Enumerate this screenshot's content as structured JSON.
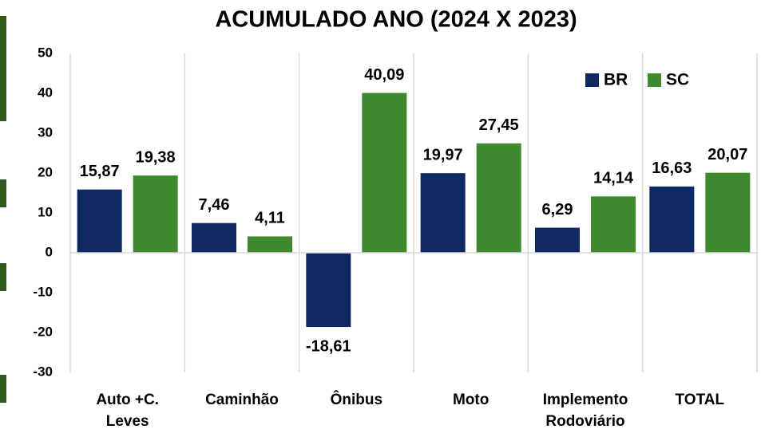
{
  "chart_data": {
    "type": "bar",
    "title": "ACUMULADO ANO (2024 X 2023)",
    "categories": [
      "Auto +C. Leves",
      "Caminhão",
      "Ônibus",
      "Moto",
      "Implemento Rodoviário",
      "TOTAL"
    ],
    "series": [
      {
        "name": "BR",
        "color": "#0f2a63",
        "values": [
          15.87,
          7.46,
          -18.61,
          19.97,
          6.29,
          16.63
        ],
        "value_labels": [
          "15,87",
          "7,46",
          "-18,61",
          "19,97",
          "6,29",
          "16,63"
        ]
      },
      {
        "name": "SC",
        "color": "#3f8a2f",
        "values": [
          19.38,
          4.11,
          40.09,
          27.45,
          14.14,
          20.07
        ],
        "value_labels": [
          "19,38",
          "4,11",
          "40,09",
          "27,45",
          "14,14",
          "20,07"
        ]
      }
    ],
    "ylim": [
      -30,
      50
    ],
    "yticks": [
      -30,
      -20,
      -10,
      0,
      10,
      20,
      30,
      40,
      50
    ],
    "legend": "top-right",
    "grid": false
  }
}
